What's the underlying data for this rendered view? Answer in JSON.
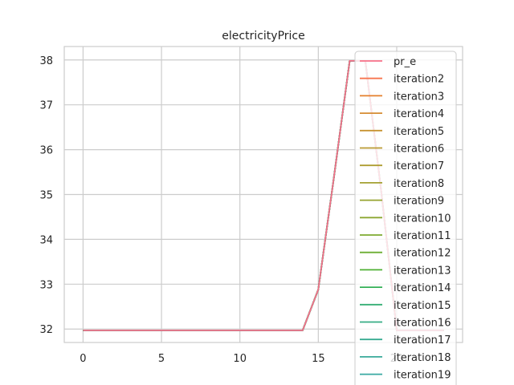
{
  "chart_data": {
    "type": "line",
    "title": "electricityPrice",
    "xlabel": "",
    "ylabel": "",
    "xlim": [
      -1.2,
      24.2
    ],
    "ylim": [
      31.7,
      38.3
    ],
    "xticks": [
      0,
      5,
      10,
      15,
      20
    ],
    "yticks": [
      32,
      33,
      34,
      35,
      36,
      37,
      38
    ],
    "grid": true,
    "legend_position": "upper-right",
    "x": [
      0,
      1,
      2,
      3,
      4,
      5,
      6,
      7,
      8,
      9,
      10,
      11,
      12,
      13,
      14,
      15,
      16,
      17,
      18,
      19,
      20,
      21,
      22,
      23
    ],
    "series": [
      {
        "name": "pr_e",
        "color": "#f77189",
        "values": [
          31.97,
          31.97,
          31.97,
          31.97,
          31.97,
          31.97,
          31.97,
          31.97,
          31.97,
          31.97,
          31.97,
          31.97,
          31.97,
          31.97,
          31.97,
          32.88,
          35.4,
          37.98,
          37.98,
          35.1,
          31.97,
          31.97,
          31.97,
          31.97
        ]
      },
      {
        "name": "iteration2",
        "color": "#f7754f",
        "values": [
          31.97,
          31.97,
          31.97,
          31.97,
          31.97,
          31.97,
          31.97,
          31.97,
          31.97,
          31.97,
          31.97,
          31.97,
          31.97,
          31.97,
          31.97,
          32.88,
          35.4,
          37.98,
          37.98,
          35.1,
          31.97,
          31.97,
          31.97,
          31.97
        ]
      },
      {
        "name": "iteration3",
        "color": "#e5802c",
        "values": [
          31.97,
          31.97,
          31.97,
          31.97,
          31.97,
          31.97,
          31.97,
          31.97,
          31.97,
          31.97,
          31.97,
          31.97,
          31.97,
          31.97,
          31.97,
          32.88,
          35.4,
          37.98,
          37.98,
          35.1,
          31.97,
          31.97,
          31.97,
          31.97
        ]
      },
      {
        "name": "iteration4",
        "color": "#d58b32",
        "values": [
          31.97,
          31.97,
          31.97,
          31.97,
          31.97,
          31.97,
          31.97,
          31.97,
          31.97,
          31.97,
          31.97,
          31.97,
          31.97,
          31.97,
          31.97,
          32.88,
          35.4,
          37.98,
          37.98,
          35.1,
          31.97,
          31.97,
          31.97,
          31.97
        ]
      },
      {
        "name": "iteration5",
        "color": "#c79332",
        "values": [
          31.97,
          31.97,
          31.97,
          31.97,
          31.97,
          31.97,
          31.97,
          31.97,
          31.97,
          31.97,
          31.97,
          31.97,
          31.97,
          31.97,
          31.97,
          32.88,
          35.4,
          37.98,
          37.98,
          35.1,
          31.97,
          31.97,
          31.97,
          31.97
        ]
      },
      {
        "name": "iteration6",
        "color": "#ba9a32",
        "values": [
          31.97,
          31.97,
          31.97,
          31.97,
          31.97,
          31.97,
          31.97,
          31.97,
          31.97,
          31.97,
          31.97,
          31.97,
          31.97,
          31.97,
          31.97,
          32.88,
          35.4,
          37.98,
          37.98,
          35.1,
          31.97,
          31.97,
          31.97,
          31.97
        ]
      },
      {
        "name": "iteration7",
        "color": "#ae9d31",
        "values": [
          31.97,
          31.97,
          31.97,
          31.97,
          31.97,
          31.97,
          31.97,
          31.97,
          31.97,
          31.97,
          31.97,
          31.97,
          31.97,
          31.97,
          31.97,
          32.88,
          35.4,
          37.98,
          37.98,
          35.1,
          31.97,
          31.97,
          31.97,
          31.97
        ]
      },
      {
        "name": "iteration8",
        "color": "#a3a132",
        "values": [
          31.97,
          31.97,
          31.97,
          31.97,
          31.97,
          31.97,
          31.97,
          31.97,
          31.97,
          31.97,
          31.97,
          31.97,
          31.97,
          31.97,
          31.97,
          32.88,
          35.4,
          37.98,
          37.98,
          35.1,
          31.97,
          31.97,
          31.97,
          31.97
        ]
      },
      {
        "name": "iteration9",
        "color": "#97a431",
        "values": [
          31.97,
          31.97,
          31.97,
          31.97,
          31.97,
          31.97,
          31.97,
          31.97,
          31.97,
          31.97,
          31.97,
          31.97,
          31.97,
          31.97,
          31.97,
          32.88,
          35.4,
          37.98,
          37.98,
          35.1,
          31.97,
          31.97,
          31.97,
          31.97
        ]
      },
      {
        "name": "iteration10",
        "color": "#8ca732",
        "values": [
          31.97,
          31.97,
          31.97,
          31.97,
          31.97,
          31.97,
          31.97,
          31.97,
          31.97,
          31.97,
          31.97,
          31.97,
          31.97,
          31.97,
          31.97,
          32.88,
          35.4,
          37.98,
          37.98,
          35.1,
          31.97,
          31.97,
          31.97,
          31.97
        ]
      },
      {
        "name": "iteration11",
        "color": "#7eaa31",
        "values": [
          31.97,
          31.97,
          31.97,
          31.97,
          31.97,
          31.97,
          31.97,
          31.97,
          31.97,
          31.97,
          31.97,
          31.97,
          31.97,
          31.97,
          31.97,
          32.88,
          35.4,
          37.98,
          37.98,
          35.1,
          31.97,
          31.97,
          31.97,
          31.97
        ]
      },
      {
        "name": "iteration12",
        "color": "#6aad31",
        "values": [
          31.97,
          31.97,
          31.97,
          31.97,
          31.97,
          31.97,
          31.97,
          31.97,
          31.97,
          31.97,
          31.97,
          31.97,
          31.97,
          31.97,
          31.97,
          32.88,
          35.4,
          37.98,
          37.98,
          35.1,
          31.97,
          31.97,
          31.97,
          31.97
        ]
      },
      {
        "name": "iteration13",
        "color": "#4fb034",
        "values": [
          31.97,
          31.97,
          31.97,
          31.97,
          31.97,
          31.97,
          31.97,
          31.97,
          31.97,
          31.97,
          31.97,
          31.97,
          31.97,
          31.97,
          31.97,
          32.88,
          35.4,
          37.98,
          37.98,
          35.1,
          31.97,
          31.97,
          31.97,
          31.97
        ]
      },
      {
        "name": "iteration14",
        "color": "#33b057",
        "values": [
          31.97,
          31.97,
          31.97,
          31.97,
          31.97,
          31.97,
          31.97,
          31.97,
          31.97,
          31.97,
          31.97,
          31.97,
          31.97,
          31.97,
          31.97,
          32.88,
          35.4,
          37.98,
          37.98,
          35.1,
          31.97,
          31.97,
          31.97,
          31.97
        ]
      },
      {
        "name": "iteration15",
        "color": "#35ae74",
        "values": [
          31.97,
          31.97,
          31.97,
          31.97,
          31.97,
          31.97,
          31.97,
          31.97,
          31.97,
          31.97,
          31.97,
          31.97,
          31.97,
          31.97,
          31.97,
          32.88,
          35.4,
          37.98,
          37.98,
          35.1,
          31.97,
          31.97,
          31.97,
          31.97
        ]
      },
      {
        "name": "iteration16",
        "color": "#36ad85",
        "values": [
          31.97,
          31.97,
          31.97,
          31.97,
          31.97,
          31.97,
          31.97,
          31.97,
          31.97,
          31.97,
          31.97,
          31.97,
          31.97,
          31.97,
          31.97,
          32.88,
          35.4,
          37.98,
          37.98,
          35.1,
          31.97,
          31.97,
          31.97,
          31.97
        ]
      },
      {
        "name": "iteration17",
        "color": "#37ab91",
        "values": [
          31.97,
          31.97,
          31.97,
          31.97,
          31.97,
          31.97,
          31.97,
          31.97,
          31.97,
          31.97,
          31.97,
          31.97,
          31.97,
          31.97,
          31.97,
          32.88,
          35.4,
          37.98,
          37.98,
          35.1,
          31.97,
          31.97,
          31.97,
          31.97
        ]
      },
      {
        "name": "iteration18",
        "color": "#38aa9a",
        "values": [
          31.97,
          31.97,
          31.97,
          31.97,
          31.97,
          31.97,
          31.97,
          31.97,
          31.97,
          31.97,
          31.97,
          31.97,
          31.97,
          31.97,
          31.97,
          32.88,
          35.4,
          37.98,
          37.98,
          35.1,
          31.97,
          31.97,
          31.97,
          31.97
        ]
      },
      {
        "name": "iteration19",
        "color": "#39a9a2",
        "values": [
          31.97,
          31.97,
          31.97,
          31.97,
          31.97,
          31.97,
          31.97,
          31.97,
          31.97,
          31.97,
          31.97,
          31.97,
          31.97,
          31.97,
          31.97,
          32.88,
          35.4,
          37.98,
          37.98,
          35.1,
          31.97,
          31.97,
          31.97,
          31.97
        ]
      }
    ]
  }
}
